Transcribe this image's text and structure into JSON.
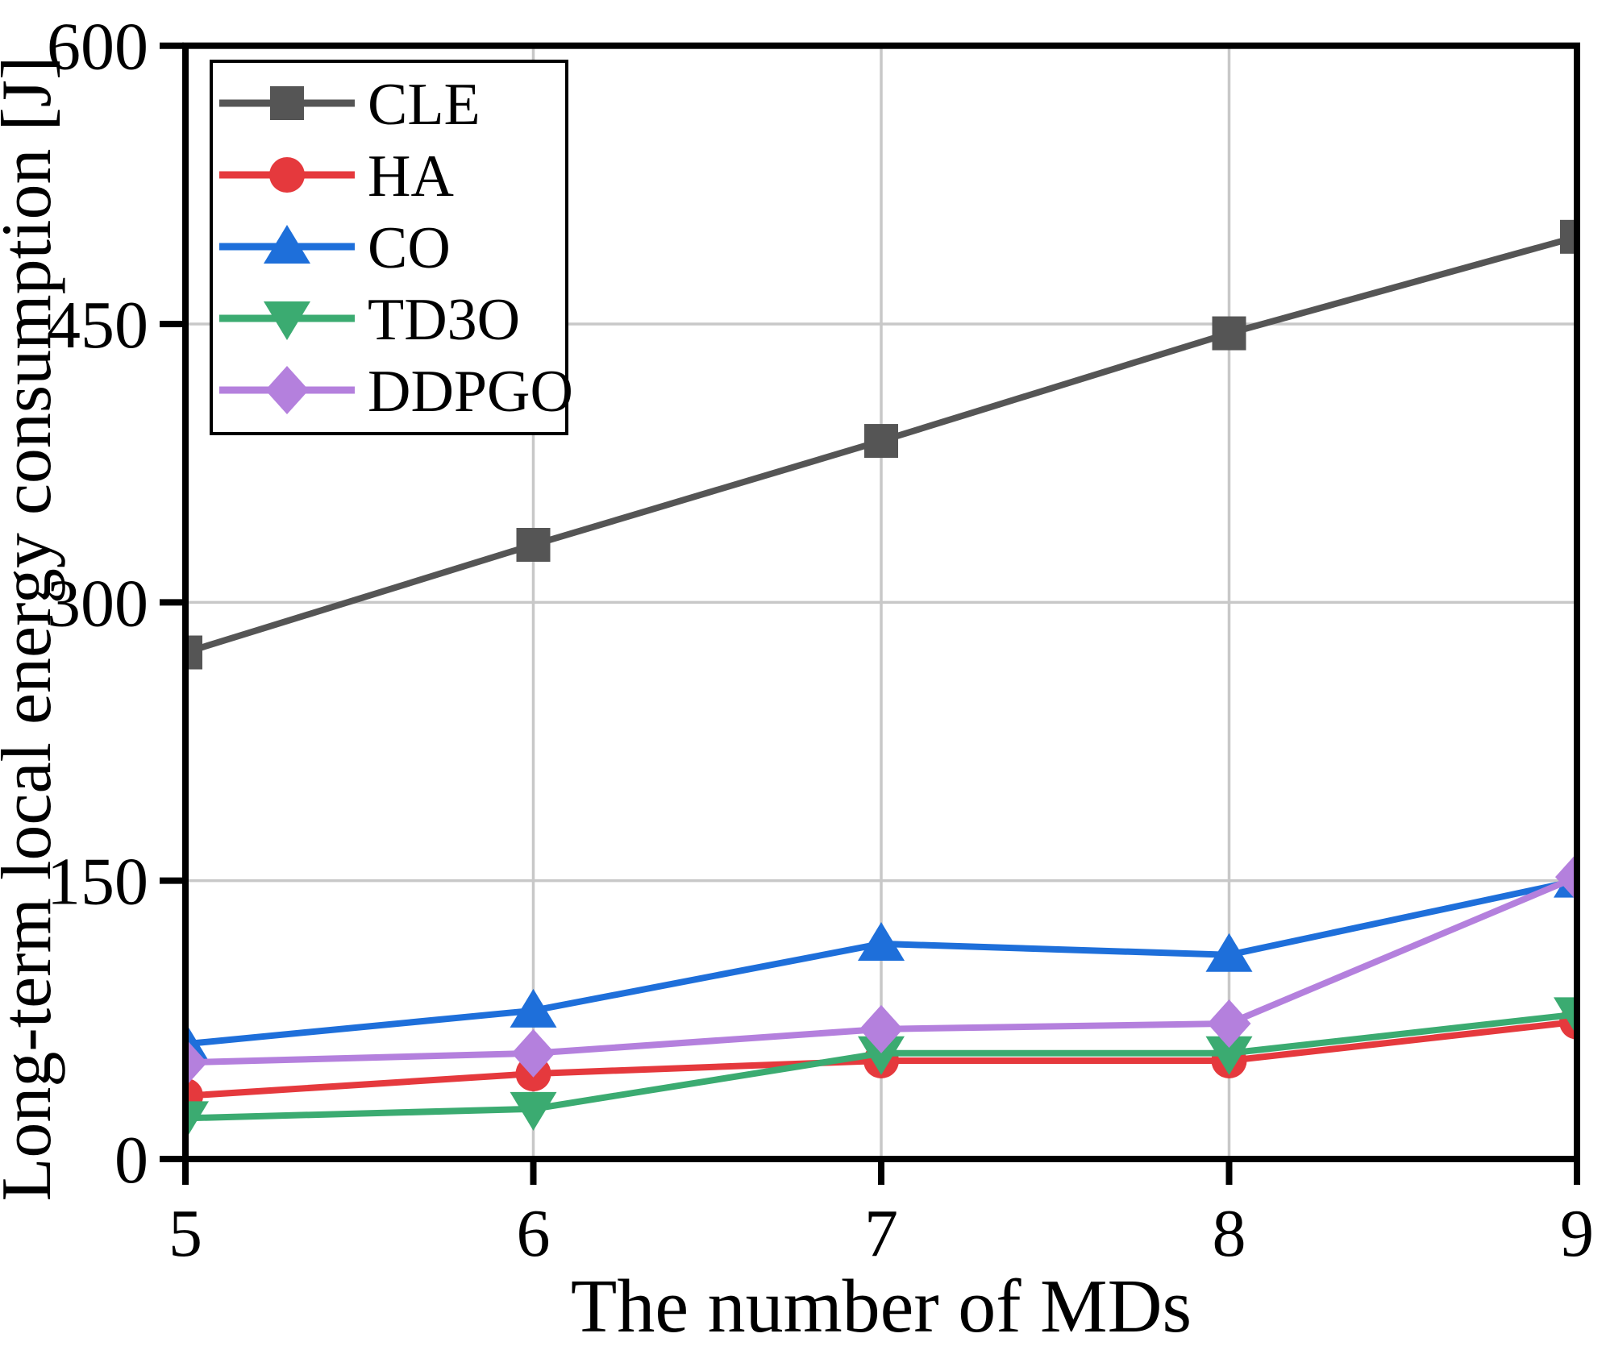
{
  "figure": {
    "background": "#ffffff"
  },
  "chart_data": {
    "type": "line",
    "xlabel": "The number of MDs",
    "ylabel": "Long-term local energy consumption [J]",
    "x": [
      5,
      6,
      7,
      8,
      9
    ],
    "xtick_labels": [
      "5",
      "6",
      "7",
      "8",
      "9"
    ],
    "yticks": [
      0,
      150,
      300,
      450,
      600
    ],
    "ytick_labels": [
      "0",
      "150",
      "300",
      "450",
      "600"
    ],
    "xlim": [
      5,
      9
    ],
    "ylim": [
      0,
      600
    ],
    "grid": true,
    "grid_color": "#c8c8c8",
    "axis_color": "#000000",
    "legend": {
      "position": "upper-left",
      "background": "#ffffff",
      "border_color": "#000000"
    },
    "series": [
      {
        "name": "CLE",
        "color": "#555555",
        "marker": "square",
        "values": [
          273,
          331,
          387,
          445,
          497
        ]
      },
      {
        "name": "HA",
        "color": "#e5393d",
        "marker": "circle",
        "values": [
          34,
          46,
          53,
          53,
          74
        ]
      },
      {
        "name": "CO",
        "color": "#1e6fda",
        "marker": "triangle-up",
        "values": [
          62,
          80,
          116,
          110,
          150
        ]
      },
      {
        "name": "TD3O",
        "color": "#3bab71",
        "marker": "triangle-down",
        "values": [
          22,
          27,
          57,
          57,
          78
        ]
      },
      {
        "name": "DDPGO",
        "color": "#b480dd",
        "marker": "diamond",
        "values": [
          52,
          57,
          70,
          73,
          152
        ]
      }
    ]
  }
}
